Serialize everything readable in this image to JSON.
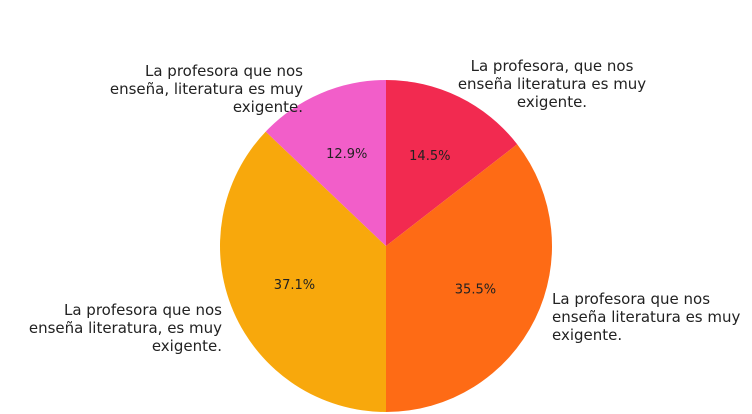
{
  "chart_data": {
    "type": "pie",
    "categories": [
      "La profesora, que nos enseña literatura es muy exigente.",
      "La profesora que nos enseña literatura es muy exigente.",
      "La profesora que nos enseña literatura, es muy exigente.",
      "La profesora que nos enseña, literatura es muy exigente."
    ],
    "values": [
      14.5,
      35.5,
      37.1,
      12.9
    ],
    "value_labels": [
      "14.5%",
      "35.5%",
      "37.1%",
      "12.9%"
    ],
    "colors": [
      "#f22a50",
      "#fe6b15",
      "#f8a80c",
      "#f25ec9"
    ]
  }
}
